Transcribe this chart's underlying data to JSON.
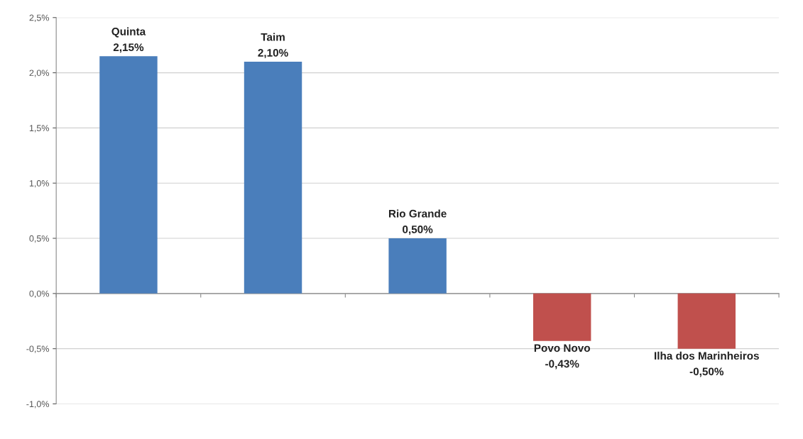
{
  "chart_data": {
    "type": "bar",
    "categories": [
      "Quinta",
      "Taim",
      "Rio Grande",
      "Povo Novo",
      "Ilha dos Marinheiros"
    ],
    "values": [
      2.15,
      2.1,
      0.5,
      -0.43,
      -0.5
    ],
    "colors": [
      "#4a7ebb",
      "#4a7ebb",
      "#4a7ebb",
      "#c0504d",
      "#c0504d"
    ],
    "value_labels": [
      "2,15%",
      "2,10%",
      "0,50%",
      "-0,43%",
      "-0,50%"
    ],
    "ylim": [
      -1.0,
      2.5
    ],
    "yticks": [
      {
        "value": -1.0,
        "label": "-1,0%"
      },
      {
        "value": -0.5,
        "label": "-0,5%"
      },
      {
        "value": 0.0,
        "label": "0,0%"
      },
      {
        "value": 0.5,
        "label": "0,5%"
      },
      {
        "value": 1.0,
        "label": "1,0%"
      },
      {
        "value": 1.5,
        "label": "1,5%"
      },
      {
        "value": 2.0,
        "label": "2,0%"
      },
      {
        "value": 2.5,
        "label": "2,5%"
      }
    ],
    "grid": "y",
    "tick_labels": "y"
  }
}
